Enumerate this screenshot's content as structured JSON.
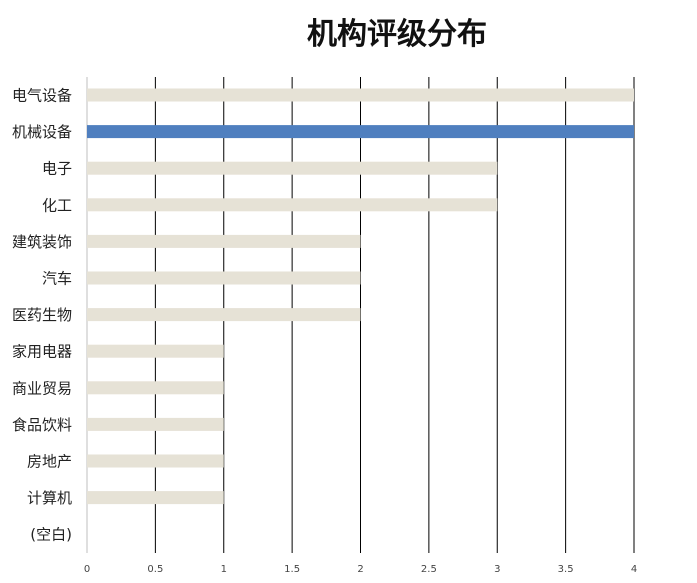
{
  "chart_data": {
    "type": "bar",
    "orientation": "horizontal",
    "title": "机构评级分布",
    "categories": [
      "电气设备",
      "机械设备",
      "电子",
      "化工",
      "建筑装饰",
      "汽车",
      "医药生物",
      "家用电器",
      "商业贸易",
      "食品饮料",
      "房地产",
      "计算机",
      "(空白)"
    ],
    "values": [
      4,
      4,
      3,
      3,
      2,
      2,
      2,
      1,
      1,
      1,
      1,
      1,
      null
    ],
    "highlight_category": "机械设备",
    "x_ticks": [
      "0",
      "0.5",
      "1",
      "1.5",
      "2",
      "2.5",
      "3",
      "3.5",
      "4"
    ],
    "xlim": [
      0,
      4
    ],
    "grid": "vertical",
    "legend": "none",
    "colors": {
      "bar": "#e6e2d6",
      "highlight": "#4f7fbf",
      "grid": "#000000"
    }
  }
}
